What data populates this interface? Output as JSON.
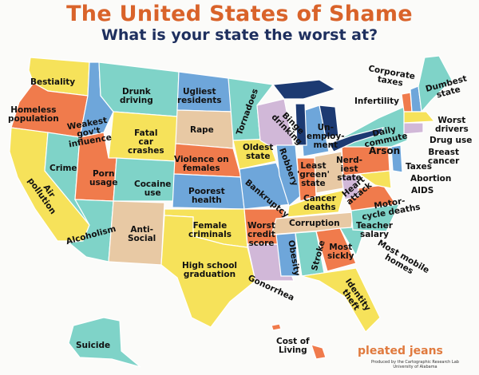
{
  "header": {
    "title": "The United States of Shame",
    "subtitle": "What is your state the worst at?"
  },
  "colors": {
    "title": "#d9632a",
    "subtitle": "#1e2f5e",
    "yellow": "#f6e25a",
    "orange": "#f07b4c",
    "teal": "#7fd3c8",
    "blue": "#6ea6da",
    "tan": "#e8c9a4",
    "lavender": "#d1b8d8",
    "lakes": "#1c3a72"
  },
  "labels": [
    "Bestiality",
    "Homeless\npopulation",
    "Weakest\ngov't\ninfluence",
    "Drunk\ndriving",
    "Ugliest\nresidents",
    "Tornadoes",
    "Binge\ndrinking",
    "Un-\nemploy-\nment",
    "Corporate\ntaxes",
    "Infertility",
    "Dumbest\nstate",
    "Worst\ndrivers",
    "Daily\ncommute",
    "Drug use",
    "Breast\ncancer",
    "Fatal\ncar\ncrashes",
    "Rape",
    "Crime",
    "Porn\nusage",
    "Violence on\nfemales",
    "Oldest\nstate",
    "Robbery",
    "Least\n'green'\nstate",
    "Nerd-\niest\nstate",
    "Arson",
    "Taxes",
    "Abortion",
    "AIDS",
    "Heart\nattack",
    "Motor-\ncycle deaths",
    "Air\npollution",
    "Cocaine\nuse",
    "Poorest\nhealth",
    "Bankruptcy",
    "Cancer\ndeaths",
    "Alcoholism",
    "Anti-\nSocial",
    "Female\ncriminals",
    "Worst\ncredit\nscore",
    "Corruption",
    "Teacher\nsalary",
    "Most mobile\nhomes",
    "Obesity",
    "Stroke",
    "Most\nsickly",
    "High school\ngraduation",
    "Gonorrhea",
    "Identity\ntheft",
    "Suicide",
    "Cost of\nLiving"
  ],
  "logo": {
    "text": "pleated jeans",
    "credit": "Produced by the Cartographic Research Lab\nUniversity of Alabama"
  }
}
